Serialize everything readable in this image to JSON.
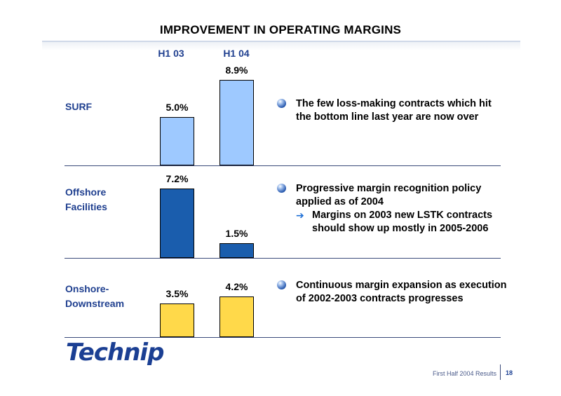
{
  "title": "IMPROVEMENT IN OPERATING MARGINS",
  "chart_data": {
    "type": "bar",
    "categories": [
      "H1 03",
      "H1 04"
    ],
    "unit": "%",
    "ylim": [
      0,
      10
    ],
    "series": [
      {
        "name": "SURF",
        "values": [
          5.0,
          8.9
        ],
        "labels": [
          "5.0%",
          "8.9%"
        ],
        "color": "#9ec9ff"
      },
      {
        "name": "Offshore Facilities",
        "values": [
          7.2,
          1.5
        ],
        "labels": [
          "7.2%",
          "1.5%"
        ],
        "color": "#1a5dad"
      },
      {
        "name": "Onshore-Downstream",
        "values": [
          3.5,
          4.2
        ],
        "labels": [
          "3.5%",
          "4.2%"
        ],
        "color": "#ffd94a"
      }
    ]
  },
  "segments": [
    {
      "label_lines": [
        "SURF"
      ],
      "bullet": "The few loss-making contracts which hit the bottom line last year are now over",
      "sub": ""
    },
    {
      "label_lines": [
        "Offshore",
        "Facilities"
      ],
      "bullet": "Progressive margin recognition policy applied as of 2004",
      "sub": "Margins on 2003 new LSTK contracts should show up mostly in 2005-2006"
    },
    {
      "label_lines": [
        "Onshore-",
        "Downstream"
      ],
      "bullet": "Continuous margin expansion as execution of 2002-2003 contracts progresses",
      "sub": ""
    }
  ],
  "logo": "Technip",
  "footer": {
    "text": "First Half 2004 Results",
    "page": "18"
  }
}
